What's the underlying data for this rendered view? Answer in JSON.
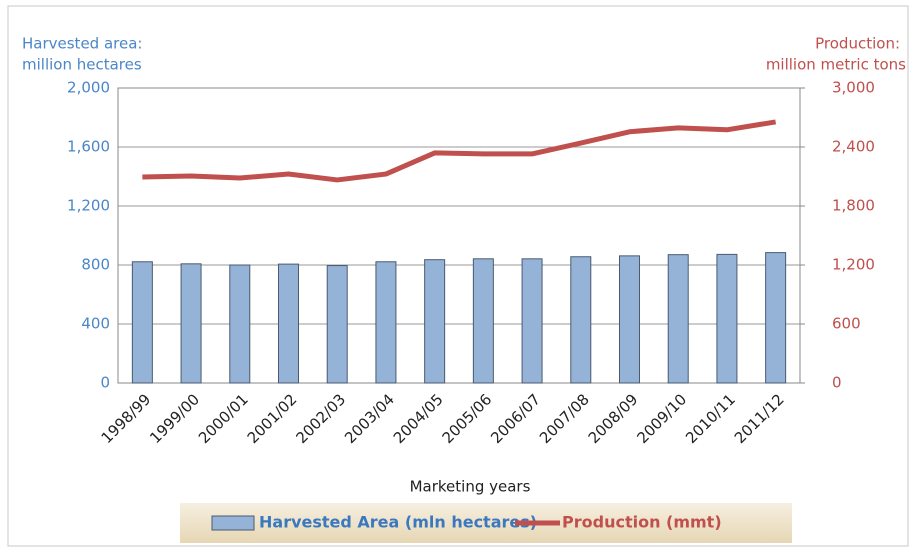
{
  "chart_data": {
    "type": "bar",
    "ylabel": [
      "Harvested area:",
      "million hectares"
    ],
    "y2label": [
      "Production:",
      "million metric tons"
    ],
    "xlabel": "Marketing years",
    "categories": [
      "1998/99",
      "1999/00",
      "2000/01",
      "2001/02",
      "2002/03",
      "2003/04",
      "2004/05",
      "2005/06",
      "2006/07",
      "2007/08",
      "2008/09",
      "2009/10",
      "2010/11",
      "2011/12"
    ],
    "series": [
      {
        "name": "Harvested Area (mln hectares)",
        "type": "bar",
        "color": "#95b3d7",
        "values": [
          822,
          808,
          800,
          806,
          796,
          822,
          836,
          842,
          842,
          856,
          862,
          870,
          872,
          884
        ]
      },
      {
        "name": "Production (mmt)",
        "type": "line",
        "axis": "y2",
        "color": "#c0504d",
        "values": [
          2095,
          2105,
          2085,
          2125,
          2065,
          2125,
          2340,
          2330,
          2330,
          2440,
          2555,
          2595,
          2575,
          2655
        ]
      }
    ],
    "ylim": [
      0,
      2000
    ],
    "yticks": [
      0,
      400,
      800,
      {
        "value": 1200,
        "label": "1,200"
      },
      {
        "value": 1600,
        "label": "1,600"
      },
      {
        "value": 2000,
        "label": "2,000"
      }
    ],
    "y2lim": [
      0,
      3000
    ],
    "y2ticks": [
      0,
      600,
      {
        "value": 1200,
        "label": "1,200"
      },
      {
        "value": 1800,
        "label": "1,800"
      },
      {
        "value": 2400,
        "label": "2,400"
      },
      {
        "value": 3000,
        "label": "3,000"
      }
    ],
    "grid": true
  }
}
